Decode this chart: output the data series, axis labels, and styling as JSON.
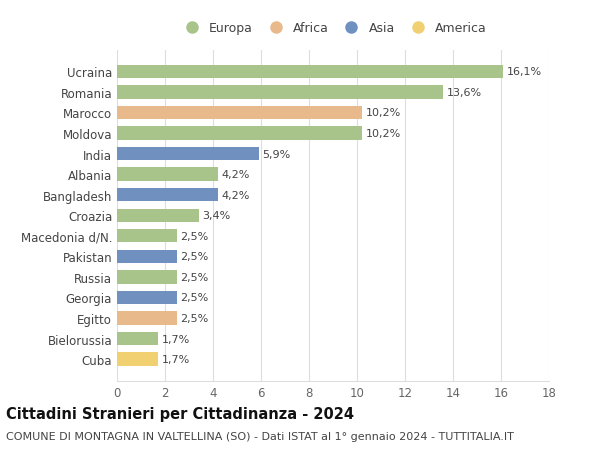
{
  "countries": [
    "Cuba",
    "Bielorussia",
    "Egitto",
    "Georgia",
    "Russia",
    "Pakistan",
    "Macedonia d/N.",
    "Croazia",
    "Bangladesh",
    "Albania",
    "India",
    "Moldova",
    "Marocco",
    "Romania",
    "Ucraina"
  ],
  "values": [
    1.7,
    1.7,
    2.5,
    2.5,
    2.5,
    2.5,
    2.5,
    3.4,
    4.2,
    4.2,
    5.9,
    10.2,
    10.2,
    13.6,
    16.1
  ],
  "labels": [
    "1,7%",
    "1,7%",
    "2,5%",
    "2,5%",
    "2,5%",
    "2,5%",
    "2,5%",
    "3,4%",
    "4,2%",
    "4,2%",
    "5,9%",
    "10,2%",
    "10,2%",
    "13,6%",
    "16,1%"
  ],
  "continents": [
    "America",
    "Europa",
    "Africa",
    "Asia",
    "Europa",
    "Asia",
    "Europa",
    "Europa",
    "Asia",
    "Europa",
    "Asia",
    "Europa",
    "Africa",
    "Europa",
    "Europa"
  ],
  "continent_colors": {
    "Europa": "#a8c48a",
    "Africa": "#e8b98a",
    "Asia": "#7090c0",
    "America": "#f0d070"
  },
  "legend_order": [
    "Europa",
    "Africa",
    "Asia",
    "America"
  ],
  "title": "Cittadini Stranieri per Cittadinanza - 2024",
  "subtitle": "COMUNE DI MONTAGNA IN VALTELLINA (SO) - Dati ISTAT al 1° gennaio 2024 - TUTTITALIA.IT",
  "xlim": [
    0,
    18
  ],
  "xticks": [
    0,
    2,
    4,
    6,
    8,
    10,
    12,
    14,
    16,
    18
  ],
  "background_color": "#ffffff",
  "grid_color": "#dddddd",
  "bar_height": 0.65,
  "title_fontsize": 10.5,
  "subtitle_fontsize": 8,
  "tick_fontsize": 8.5,
  "label_fontsize": 8
}
